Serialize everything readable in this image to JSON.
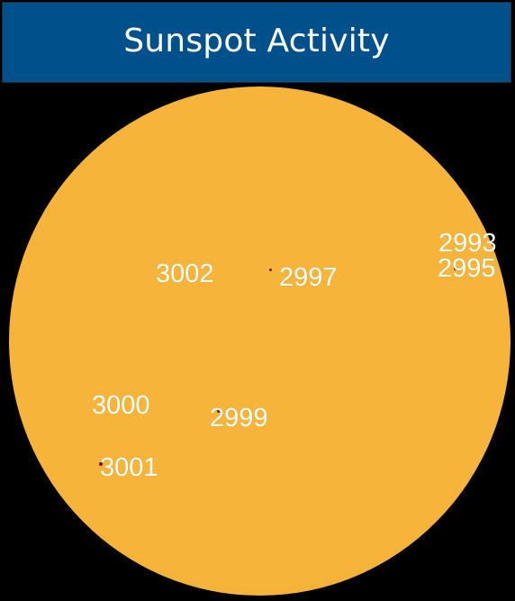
{
  "title": "Sunspot Activity",
  "colors": {
    "title_bar_bg": "#00518b",
    "background": "#000000",
    "sun_core": "#f7b43b",
    "sun_limb": "#e79b2a",
    "spot": "#7a1410",
    "label": "#ffffff"
  },
  "regions": [
    {
      "id": "3002",
      "label": "3002"
    },
    {
      "id": "2997",
      "label": "2997"
    },
    {
      "id": "2993",
      "label": "2993"
    },
    {
      "id": "2995",
      "label": "2995"
    },
    {
      "id": "3000",
      "label": "3000"
    },
    {
      "id": "2999",
      "label": "2999"
    },
    {
      "id": "3001",
      "label": "3001"
    }
  ]
}
